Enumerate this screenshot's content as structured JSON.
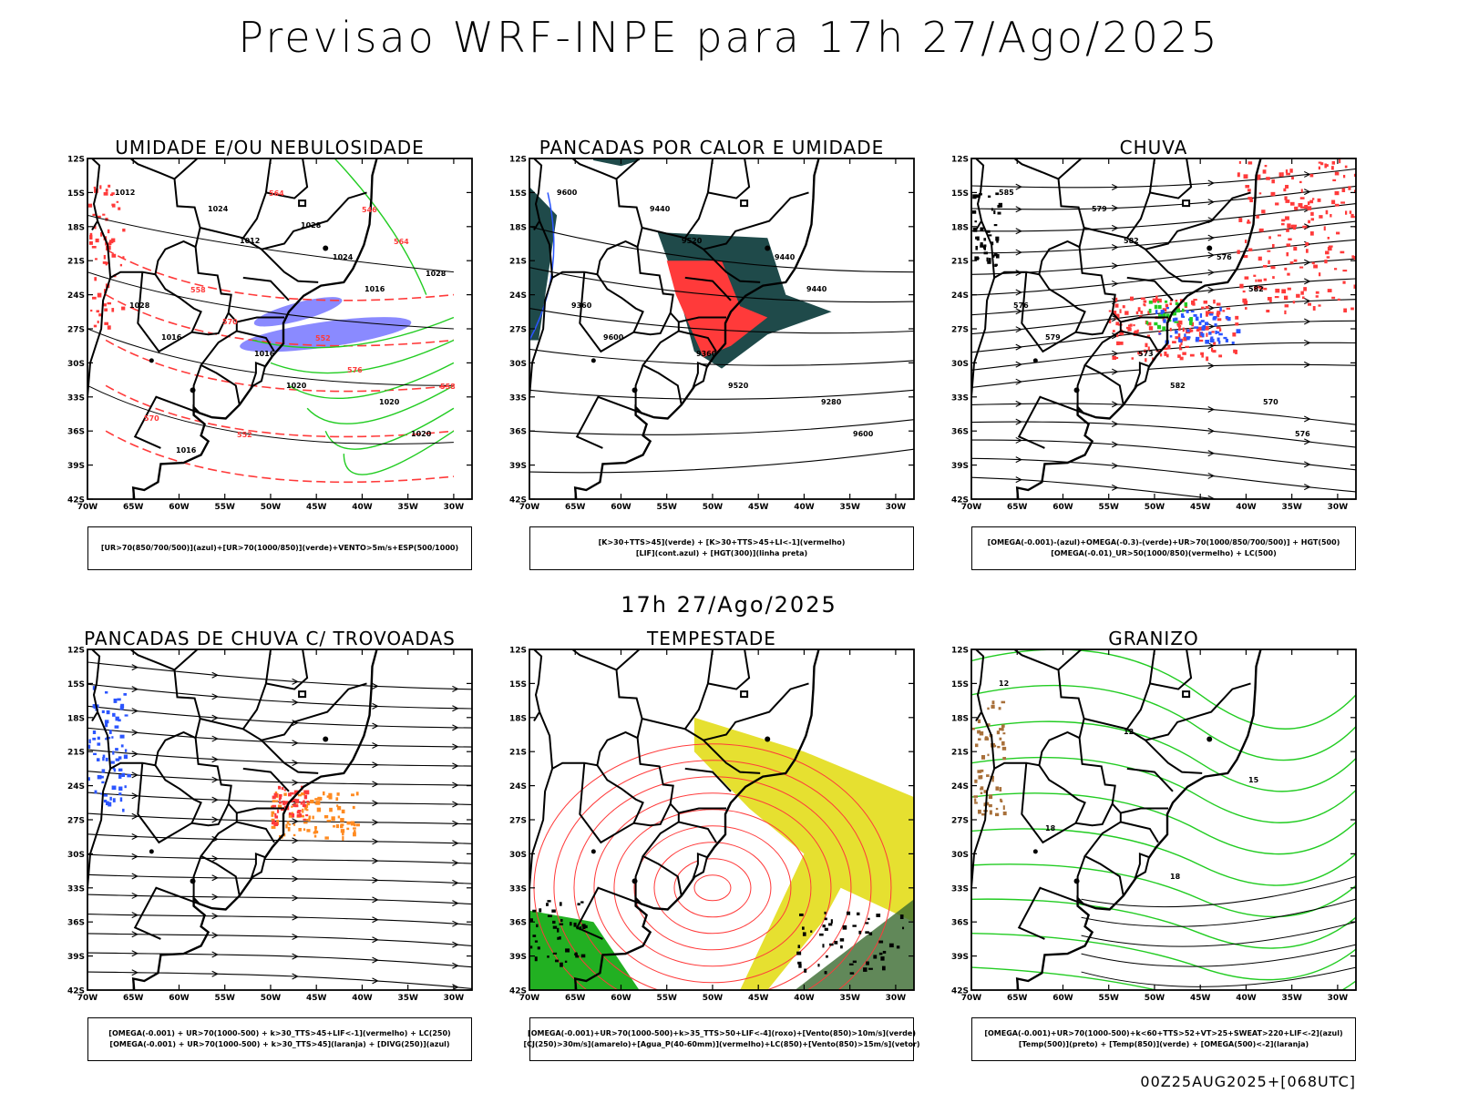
{
  "header": {
    "title": "Previsao WRF-INPE  para 17h 27/Ago/2025",
    "middle_title": "17h 27/Ago/2025",
    "run_id": "00Z25AUG2025+[068UTC]"
  },
  "axes": {
    "lat_labels": [
      "12S",
      "15S",
      "18S",
      "21S",
      "24S",
      "27S",
      "30S",
      "33S",
      "36S",
      "39S",
      "42S"
    ],
    "lon_labels": [
      "70W",
      "65W",
      "60W",
      "55W",
      "50W",
      "45W",
      "40W",
      "35W",
      "30W"
    ]
  },
  "colors": {
    "red": "#ff3a3a",
    "green": "#22cc22",
    "blue": "#2b55ff",
    "lavender": "#8a8aff",
    "dark_teal": "#1f4a4a",
    "yellow": "#e6e030",
    "orange": "#ff8a20",
    "black": "#000000"
  },
  "panels": [
    {
      "title": "UMIDADE E/OU NEBULOSIDADE",
      "legend": [
        "[UR>70(850/700/500)](azul)+[UR>70(1000/850)](verde)+VENTO>5m/s+ESP(500/1000)"
      ],
      "contour_labels": [
        "1012",
        "1012",
        "1016",
        "1016",
        "1020",
        "1020",
        "1024",
        "1024",
        "1028",
        "1016",
        "1020",
        "1016",
        "1028",
        "1028",
        "570",
        "576",
        "570",
        "564",
        "564",
        "558",
        "552",
        "558",
        "552",
        "546"
      ]
    },
    {
      "title": "PANCADAS POR CALOR E UMIDADE",
      "legend": [
        "[K>30+TTS>45](verde) + [K>30+TTS>45+LI<-1](vermelho)",
        "[LIF](cont.azul) + [HGT(300)](linha preta)"
      ],
      "contour_labels": [
        "9600",
        "9520",
        "9440",
        "9600",
        "9520",
        "9600",
        "9440",
        "9440",
        "9360",
        "9360",
        "9280"
      ]
    },
    {
      "title": "CHUVA",
      "legend": [
        "[OMEGA(-0.001)-(azul)+OMEGA(-0.3)-(verde)+UR>70(1000/850/700/500)] + HGT(500)",
        "[OMEGA(-0.01)_UR>50(1000/850)(vermelho) + LC(500)"
      ],
      "contour_labels": [
        "585",
        "582",
        "582",
        "579",
        "582",
        "576",
        "579",
        "576",
        "576",
        "573",
        "570"
      ]
    },
    {
      "title": "PANCADAS DE CHUVA C/ TROVOADAS",
      "legend": [
        "[OMEGA(-0.001) + UR>70(1000-500) + k>30_TTS>45+LIF<-1](vermelho) + LC(250)",
        "[OMEGA(-0.001) + UR>70(1000-500) + k>30_TTS>45](laranja) + [DIVG(250)](azul)"
      ],
      "contour_labels": []
    },
    {
      "title": "TEMPESTADE",
      "legend": [
        "[OMEGA(-0.001)+UR>70(1000-500)+k>35_TTS>50+LIF<-4](roxo)+[Vento(850)>10m/s](verde)",
        "[CJ(250)>30m/s](amarelo)+[Agua_P(40-60mm)](vermelho)+LC(850)+[Vento(850)>15m/s](vetor)"
      ],
      "contour_labels": []
    },
    {
      "title": "GRANIZO",
      "legend": [
        "[OMEGA(-0.001)+UR>70(1000-500)+k<60+TTS>52+VT>25+SWEAT>220+LIF<-2](azul)",
        "[Temp(500)](preto) + [Temp(850)](verde) + [OMEGA(500)<-2](laranja)"
      ],
      "contour_labels": [
        "12",
        "12",
        "15",
        "18",
        "18"
      ]
    }
  ]
}
